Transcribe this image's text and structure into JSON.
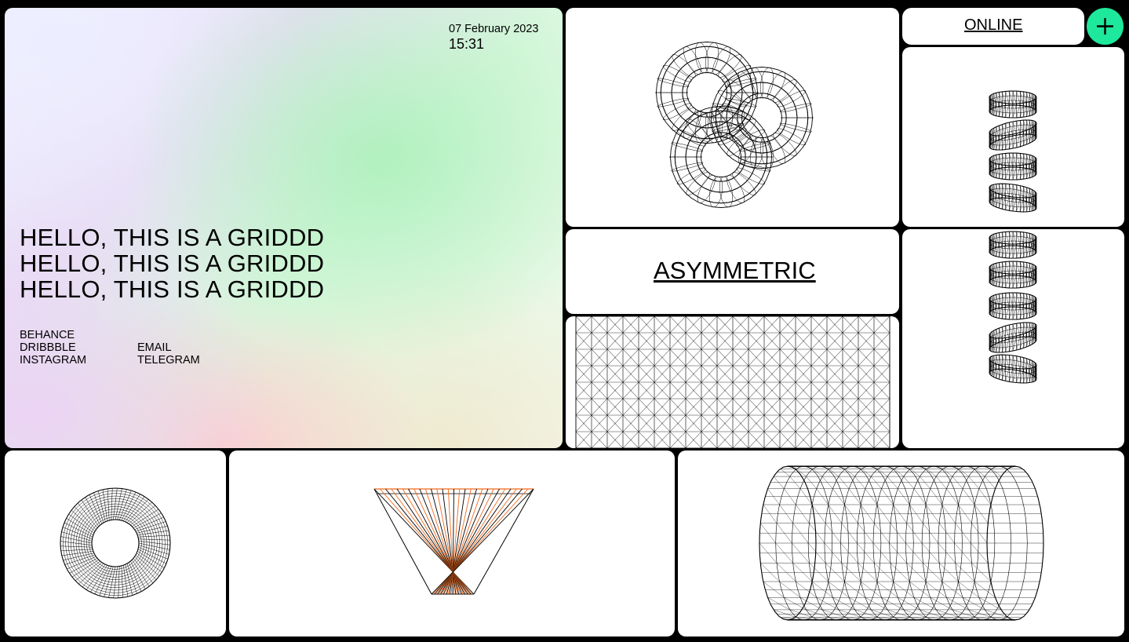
{
  "hero": {
    "date": "07 February 2023",
    "time": "15:31",
    "headline": [
      "HELLO, THIS IS A GRIDDD",
      "HELLO, THIS IS A GRIDDD",
      "HELLO, THIS IS A GRIDDD"
    ],
    "links_col1": [
      "BEHANCE",
      "DRIBBBLE",
      "INSTAGRAM"
    ],
    "links_col2": [
      "EMAIL",
      "TELEGRAM"
    ]
  },
  "status": {
    "label": "ONLINE"
  },
  "asymmetric": {
    "label": "ASYMMETRIC"
  },
  "add_button": {
    "icon": "plus-icon"
  },
  "colors": {
    "accent": "#1ee89b",
    "cone_accent": "#f26b1d",
    "background": "#000000",
    "card": "#ffffff"
  },
  "icons": {
    "trefoil": "wireframe-trefoil-knot-icon",
    "rings_top": "wireframe-stacked-rings-icon",
    "rings_bottom": "wireframe-stacked-rings-icon",
    "mesh": "wireframe-grid-mesh-icon",
    "torus": "wireframe-torus-icon",
    "cone": "wireframe-cone-icon",
    "cylinder": "wireframe-cylinder-icon"
  }
}
